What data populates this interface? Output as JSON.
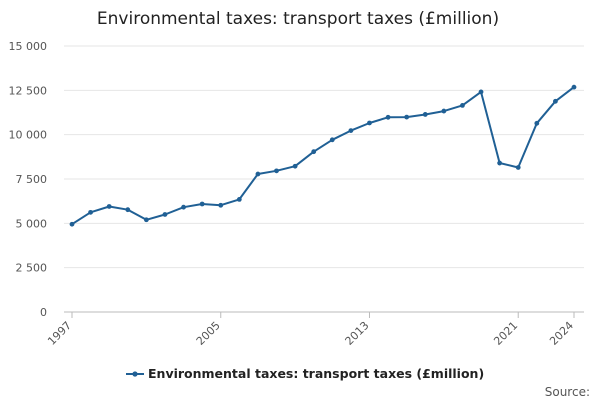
{
  "chart_data": {
    "type": "line",
    "title": "Environmental taxes: transport taxes (£million)",
    "xlabel": "",
    "ylabel": "",
    "ylim": [
      0,
      15000
    ],
    "y_ticks": [
      0,
      2500,
      5000,
      7500,
      10000,
      12500,
      15000
    ],
    "y_tick_labels": [
      "0",
      "2 500",
      "5 000",
      "7 500",
      "10 000",
      "12 500",
      "15 000"
    ],
    "x_tick_labels": [
      "1997",
      "2005",
      "2013",
      "2021",
      "2024"
    ],
    "x_tick_years": [
      1997,
      2005,
      2013,
      2021,
      2024
    ],
    "grid": true,
    "legend_position": "bottom",
    "series": [
      {
        "name": "Environmental taxes: transport taxes (£million)",
        "color": "#206095",
        "x": [
          1997,
          1998,
          1999,
          2000,
          2001,
          2002,
          2003,
          2004,
          2005,
          2006,
          2007,
          2008,
          2009,
          2010,
          2011,
          2012,
          2013,
          2014,
          2015,
          2016,
          2017,
          2018,
          2019,
          2020,
          2021,
          2022,
          2023,
          2024
        ],
        "values": [
          4950,
          5620,
          5950,
          5770,
          5200,
          5500,
          5910,
          6090,
          6020,
          6350,
          7780,
          7960,
          8220,
          9040,
          9710,
          10230,
          10660,
          10980,
          10990,
          11140,
          11330,
          11650,
          12410,
          8400,
          8150,
          10640,
          11880,
          12680
        ]
      }
    ]
  },
  "footer": {
    "source_label": "Source:"
  }
}
